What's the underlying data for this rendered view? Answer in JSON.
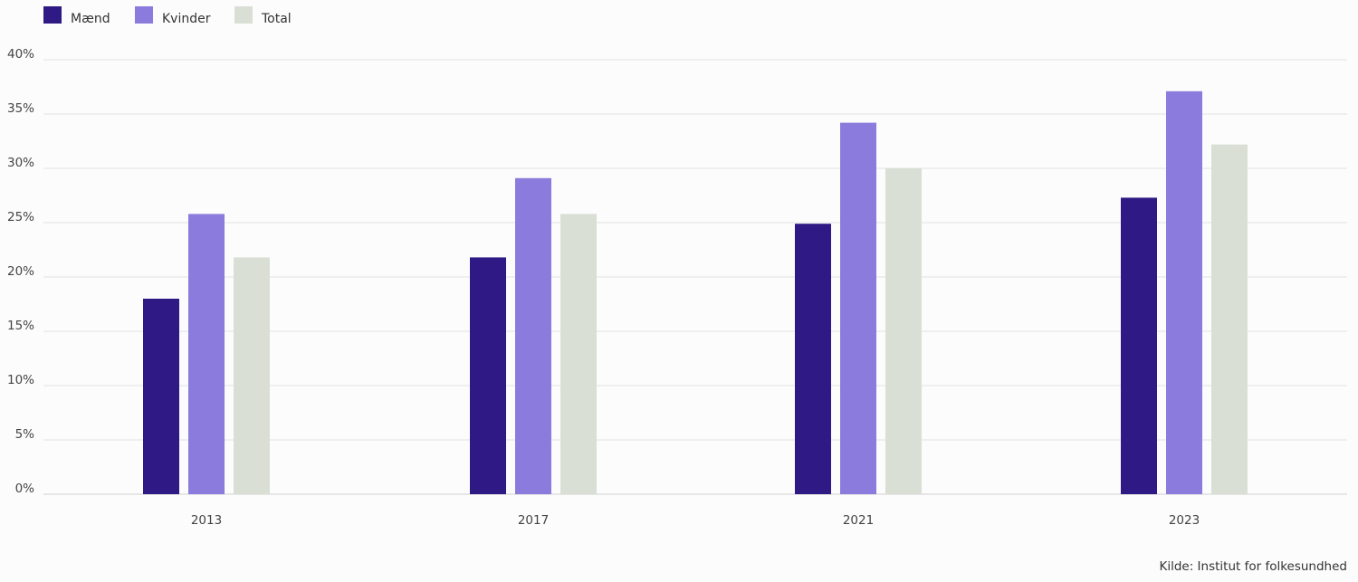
{
  "chart_data": {
    "type": "bar",
    "categories": [
      "2013",
      "2017",
      "2021",
      "2023"
    ],
    "series": [
      {
        "name": "Mænd",
        "color": "#2e1985",
        "values": [
          18.0,
          21.8,
          24.9,
          27.3
        ]
      },
      {
        "name": "Kvinder",
        "color": "#8a7bdd",
        "values": [
          25.8,
          29.1,
          34.2,
          37.1
        ]
      },
      {
        "name": "Total",
        "color": "#dadfd6",
        "values": [
          21.8,
          25.8,
          30.0,
          32.2
        ]
      }
    ],
    "yticks": [
      "0%",
      "5%",
      "10%",
      "15%",
      "20%",
      "25%",
      "30%",
      "35%",
      "40%"
    ],
    "ylim": [
      0,
      40
    ],
    "grid": true,
    "legend_position": "top-left",
    "source": "Kilde: Institut for folkesundhed"
  }
}
